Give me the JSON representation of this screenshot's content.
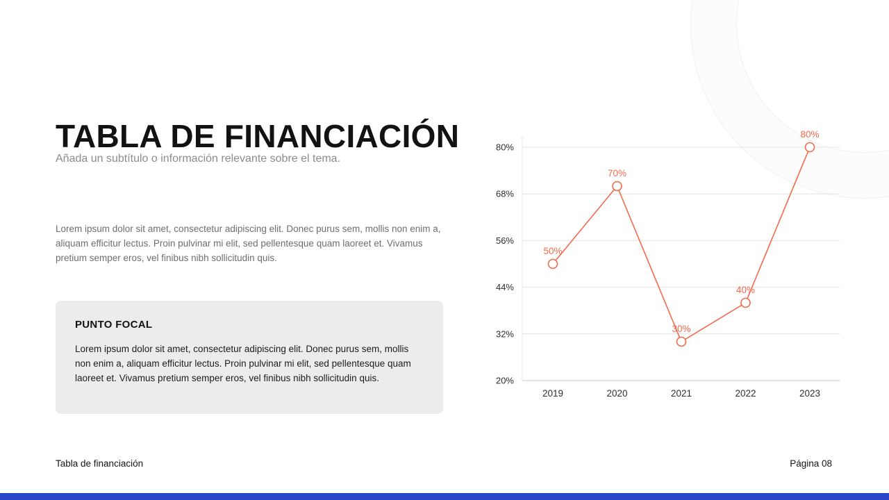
{
  "slide": {
    "title": "TABLA DE FINANCIACIÓN",
    "subtitle": "Añada un subtítulo o información relevante sobre el tema.",
    "body": "Lorem ipsum dolor sit amet, consectetur adipiscing elit. Donec purus sem, mollis non enim a, aliquam efficitur lectus. Proin pulvinar mi elit, sed pellentesque quam laoreet et. Vivamus pretium semper eros, vel finibus nibh sollicitudin quis.",
    "focal": {
      "heading": "PUNTO FOCAL",
      "body": "Lorem ipsum dolor sit amet, consectetur adipiscing elit. Donec purus sem, mollis non enim a, aliquam efficitur lectus. Proin pulvinar mi elit, sed pellentesque quam laoreet et. Vivamus pretium semper eros, vel finibus nibh sollicitudin quis."
    },
    "footer": {
      "left": "Tabla de financiación",
      "right": "Página 08"
    }
  },
  "colors": {
    "accent": "#F2694C",
    "footer_bar": "#2946C8",
    "focal_bg": "#ECECEC",
    "grid": "#E4E4E4",
    "axis_text": "#2E2E2E"
  },
  "chart_data": {
    "type": "line",
    "title": "",
    "xlabel": "",
    "ylabel": "",
    "categories": [
      "2019",
      "2020",
      "2021",
      "2022",
      "2023"
    ],
    "values": [
      50,
      70,
      30,
      40,
      80
    ],
    "point_labels": [
      "50%",
      "70%",
      "30%",
      "40%",
      "80%"
    ],
    "y_ticks": [
      "80%",
      "68%",
      "56%",
      "44%",
      "32%",
      "20%"
    ],
    "y_tick_values": [
      80,
      68,
      56,
      44,
      32,
      20
    ],
    "ylim": [
      20,
      80
    ],
    "grid": true,
    "legend": "none",
    "line_color": "#F2694C",
    "marker": "open-circle"
  }
}
